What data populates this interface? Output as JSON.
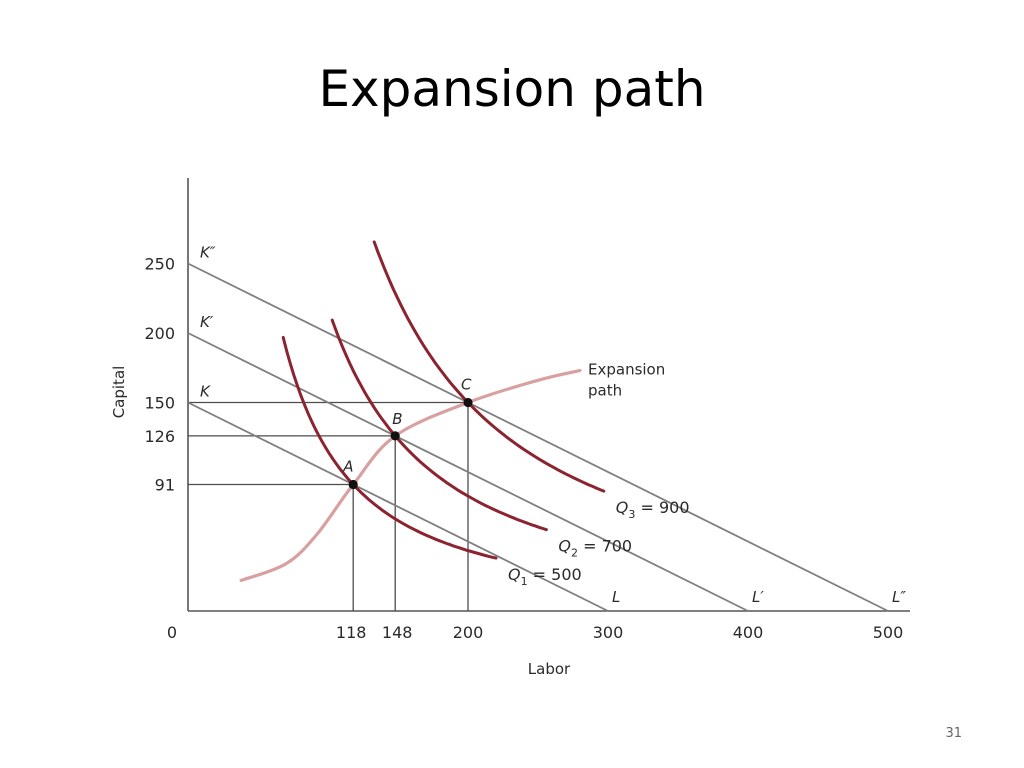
{
  "slide": {
    "title": "Expansion path",
    "page_number": "31"
  },
  "chart_data": {
    "type": "line",
    "xlabel": "Labor",
    "ylabel": "Capital",
    "xlim": [
      0,
      520
    ],
    "ylim": [
      0,
      310
    ],
    "origin_label": "0",
    "x_ticks": [
      118,
      148,
      200,
      300,
      400,
      500
    ],
    "y_ticks": [
      91,
      126,
      150,
      200,
      250
    ],
    "grid": false,
    "colors": {
      "isoquant": "#8b2330",
      "expansion_path": "#d8a0a0",
      "isocost": "#7f7f7f",
      "dropline": "#4d4d4d",
      "point": "#111111"
    },
    "isocost_lines": [
      {
        "k_label": "K",
        "l_label": "L",
        "k_intercept": 150,
        "l_intercept": 300
      },
      {
        "k_label": "K′",
        "l_label": "L′",
        "k_intercept": 200,
        "l_intercept": 400
      },
      {
        "k_label": "K″",
        "l_label": "L″",
        "k_intercept": 250,
        "l_intercept": 500
      }
    ],
    "isoquants": [
      {
        "symbol": "Q",
        "sub": "1",
        "value": "= 500",
        "through": [
          118,
          91
        ],
        "x_range": [
          68,
          220
        ]
      },
      {
        "symbol": "Q",
        "sub": "2",
        "value": "= 700",
        "through": [
          148,
          126
        ],
        "x_range": [
          103,
          256
        ]
      },
      {
        "symbol": "Q",
        "sub": "3",
        "value": "= 900",
        "through": [
          200,
          150
        ],
        "x_range": [
          133,
          297
        ]
      }
    ],
    "points": [
      {
        "label": "A",
        "x": 118,
        "y": 91
      },
      {
        "label": "B",
        "x": 148,
        "y": 126
      },
      {
        "label": "C",
        "x": 200,
        "y": 150
      }
    ],
    "expansion_path": {
      "label_lines": [
        "Expansion",
        "path"
      ],
      "points": [
        [
          38,
          22
        ],
        [
          70,
          34
        ],
        [
          92,
          55
        ],
        [
          118,
          91
        ],
        [
          148,
          126
        ],
        [
          200,
          150
        ],
        [
          250,
          166
        ],
        [
          280,
          173
        ]
      ]
    }
  }
}
